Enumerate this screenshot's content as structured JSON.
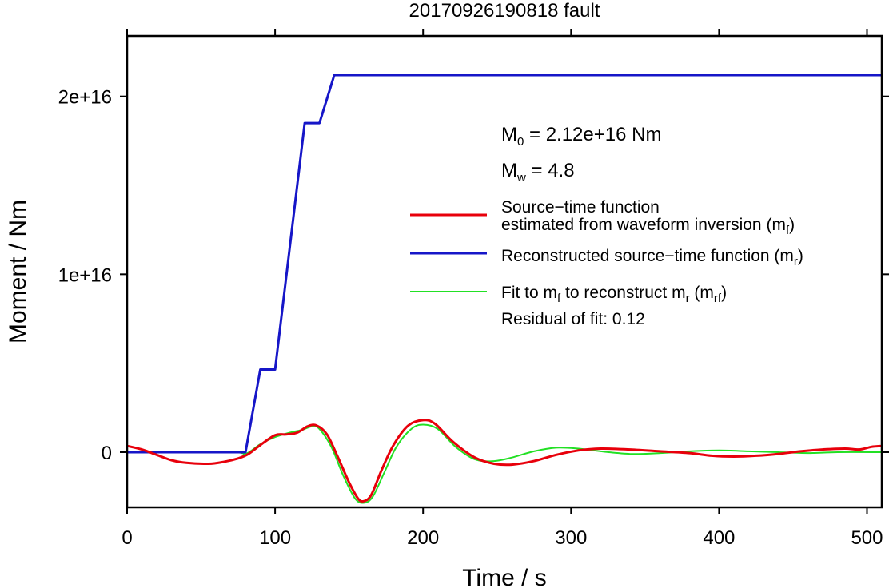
{
  "chart_data": {
    "type": "line",
    "title": "20170926190818 fault",
    "xlabel": "Time / s",
    "ylabel": "Moment / Nm",
    "xlim": [
      0,
      510
    ],
    "ylim": [
      -3100000000000000.0,
      2.34e+16
    ],
    "x_ticks": [
      {
        "value": 0,
        "label": "0"
      },
      {
        "value": 100,
        "label": "100"
      },
      {
        "value": 200,
        "label": "200"
      },
      {
        "value": 300,
        "label": "300"
      },
      {
        "value": 400,
        "label": "400"
      },
      {
        "value": 500,
        "label": "500"
      }
    ],
    "y_ticks": [
      {
        "value": 0,
        "label": "0"
      },
      {
        "value": 1e+16,
        "label": "1e+16"
      },
      {
        "value": 2e+16,
        "label": "2e+16"
      }
    ],
    "grid": false,
    "legend_position": "right",
    "annotations": {
      "m0": {
        "main": "M",
        "sub": "0",
        "rest": " = 2.12e+16 Nm"
      },
      "mw": {
        "main": "M",
        "sub": "w",
        "rest": " = 4.8"
      },
      "residual": "Residual of fit: 0.12"
    },
    "series": [
      {
        "key": "mf",
        "color": "#e8000b",
        "legend": [
          {
            "text": "Source−time function"
          },
          {
            "text": "estimated from waveform inversion (m",
            "sub": "f",
            "after": ")"
          }
        ],
        "points": [
          [
            0,
            350000000000000.0
          ],
          [
            10,
            150000000000000.0
          ],
          [
            20,
            -150000000000000.0
          ],
          [
            30,
            -450000000000000.0
          ],
          [
            40,
            -600000000000000.0
          ],
          [
            55,
            -650000000000000.0
          ],
          [
            65,
            -550000000000000.0
          ],
          [
            75,
            -350000000000000.0
          ],
          [
            82,
            -100000000000000.0
          ],
          [
            90,
            400000000000000.0
          ],
          [
            100,
            950000000000000.0
          ],
          [
            108,
            1000000000000000.0
          ],
          [
            115,
            1100000000000000.0
          ],
          [
            122,
            1450000000000000.0
          ],
          [
            128,
            1500000000000000.0
          ],
          [
            135,
            1000000000000000.0
          ],
          [
            142,
            -200000000000000.0
          ],
          [
            150,
            -1700000000000000.0
          ],
          [
            156,
            -2600000000000000.0
          ],
          [
            160,
            -2750000000000000.0
          ],
          [
            165,
            -2400000000000000.0
          ],
          [
            172,
            -1000000000000000.0
          ],
          [
            180,
            400000000000000.0
          ],
          [
            190,
            1500000000000000.0
          ],
          [
            200,
            1800000000000000.0
          ],
          [
            208,
            1600000000000000.0
          ],
          [
            220,
            600000000000000.0
          ],
          [
            235,
            -300000000000000.0
          ],
          [
            248,
            -650000000000000.0
          ],
          [
            260,
            -700000000000000.0
          ],
          [
            275,
            -500000000000000.0
          ],
          [
            290,
            -150000000000000.0
          ],
          [
            305,
            100000000000000.0
          ],
          [
            320,
            200000000000000.0
          ],
          [
            340,
            150000000000000.0
          ],
          [
            360,
            50000000000000.0
          ],
          [
            380,
            -50000000000000.0
          ],
          [
            395,
            -200000000000000.0
          ],
          [
            410,
            -250000000000000.0
          ],
          [
            425,
            -200000000000000.0
          ],
          [
            440,
            -100000000000000.0
          ],
          [
            455,
            50000000000000.0
          ],
          [
            470,
            150000000000000.0
          ],
          [
            485,
            200000000000000.0
          ],
          [
            495,
            150000000000000.0
          ],
          [
            503,
            300000000000000.0
          ],
          [
            510,
            350000000000000.0
          ]
        ]
      },
      {
        "key": "mr",
        "color": "#1616c8",
        "legend": [
          {
            "text": "Reconstructed source−time function (m",
            "sub": "r",
            "after": ")"
          }
        ],
        "points": [
          [
            0,
            0
          ],
          [
            80,
            0
          ],
          [
            90,
            4650000000000000.0
          ],
          [
            100,
            4650000000000000.0
          ],
          [
            120,
            1.85e+16
          ],
          [
            130,
            1.85e+16
          ],
          [
            140,
            2.12e+16
          ],
          [
            510,
            2.12e+16
          ]
        ]
      },
      {
        "key": "mrf",
        "color": "#22e024",
        "legend": [
          {
            "text": "Fit to m",
            "sub": "f",
            "after": " to reconstruct m",
            "sub2": "r",
            "after2": " (m",
            "sub3": "rf",
            "after3": ")"
          }
        ],
        "points": [
          [
            0,
            0
          ],
          [
            70,
            0
          ],
          [
            80,
            -100000000000000.0
          ],
          [
            90,
            450000000000000.0
          ],
          [
            100,
            850000000000000.0
          ],
          [
            110,
            1100000000000000.0
          ],
          [
            118,
            1250000000000000.0
          ],
          [
            125,
            1450000000000000.0
          ],
          [
            130,
            1300000000000000.0
          ],
          [
            138,
            300000000000000.0
          ],
          [
            146,
            -1300000000000000.0
          ],
          [
            154,
            -2600000000000000.0
          ],
          [
            160,
            -2850000000000000.0
          ],
          [
            166,
            -2500000000000000.0
          ],
          [
            174,
            -1100000000000000.0
          ],
          [
            182,
            300000000000000.0
          ],
          [
            192,
            1300000000000000.0
          ],
          [
            200,
            1550000000000000.0
          ],
          [
            210,
            1300000000000000.0
          ],
          [
            222,
            300000000000000.0
          ],
          [
            235,
            -400000000000000.0
          ],
          [
            248,
            -500000000000000.0
          ],
          [
            260,
            -300000000000000.0
          ],
          [
            275,
            50000000000000.0
          ],
          [
            290,
            250000000000000.0
          ],
          [
            305,
            200000000000000.0
          ],
          [
            320,
            50000000000000.0
          ],
          [
            340,
            -100000000000000.0
          ],
          [
            360,
            -50000000000000.0
          ],
          [
            380,
            50000000000000.0
          ],
          [
            400,
            100000000000000.0
          ],
          [
            420,
            50000000000000.0
          ],
          [
            440,
            0
          ],
          [
            460,
            -50000000000000.0
          ],
          [
            480,
            0
          ],
          [
            510,
            0
          ]
        ]
      }
    ]
  }
}
